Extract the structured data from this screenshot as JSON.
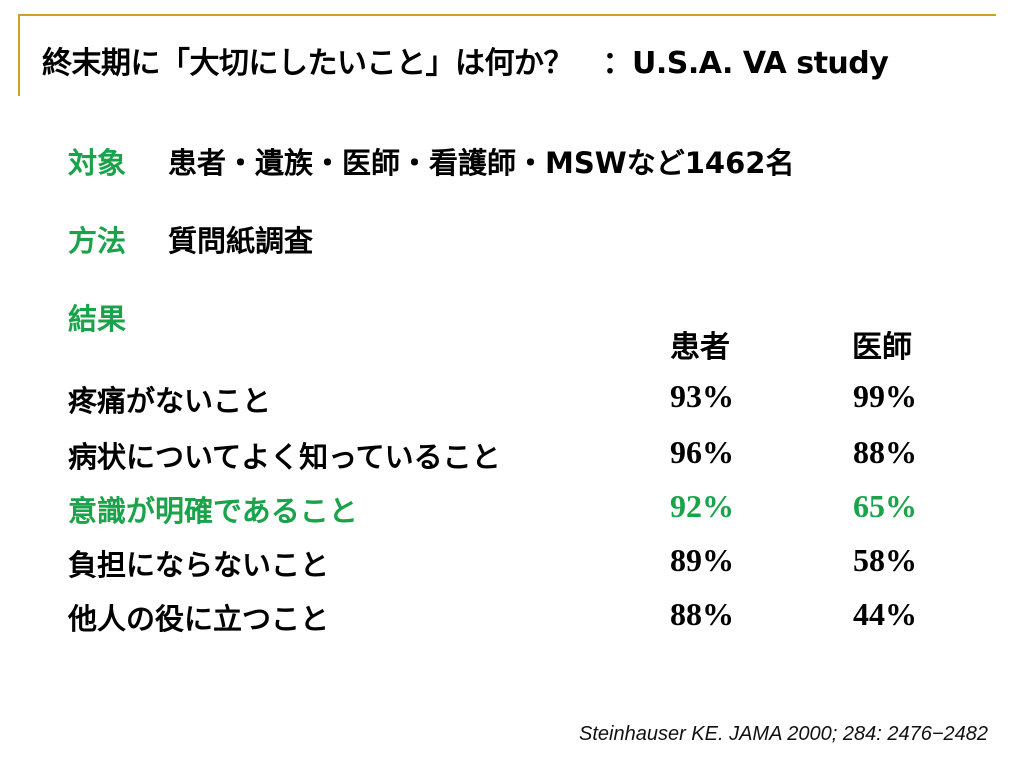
{
  "title": "終末期に「大切にしたいこと」は何か？　：U.S.A. VA study",
  "subject": {
    "label": "対象",
    "text": "患者・遺族・医師・看護師・MSWなど1462名"
  },
  "method": {
    "label": "方法",
    "text": "質問紙調査"
  },
  "results": {
    "label": "結果",
    "columns": [
      "患者",
      "医師"
    ],
    "rows": [
      {
        "item": "疼痛がないこと",
        "patient": "93%",
        "doctor": "99%",
        "highlight": false
      },
      {
        "item": "病状についてよく知っていること",
        "patient": "96%",
        "doctor": "88%",
        "highlight": false
      },
      {
        "item": "意識が明確であること",
        "patient": "92%",
        "doctor": "65%",
        "highlight": true
      },
      {
        "item": "負担にならないこと",
        "patient": "89%",
        "doctor": "58%",
        "highlight": false
      },
      {
        "item": "他人の役に立つこと",
        "patient": "88%",
        "doctor": "44%",
        "highlight": false
      }
    ]
  },
  "citation": "Steinhauser KE. JAMA 2000; 284: 2476−2482",
  "colors": {
    "accent_green": "#1aa34a",
    "rule_gold": "#c9a227",
    "text": "#000000"
  }
}
